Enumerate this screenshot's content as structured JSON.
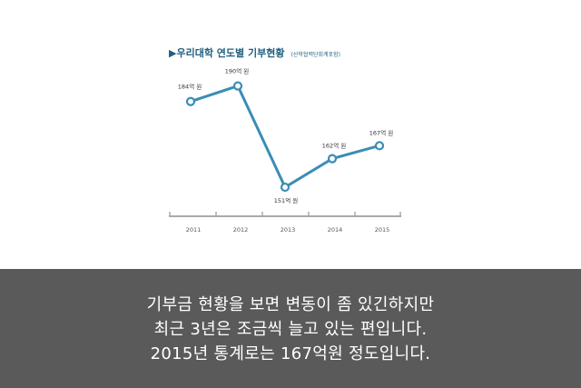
{
  "chart_data": {
    "type": "line",
    "title": "▶우리대학 연도별 기부현황",
    "subtitle": "(산학협력단회계포함)",
    "categories": [
      "2011",
      "2012",
      "2013",
      "2014",
      "2015"
    ],
    "series": [
      {
        "values": [
          184,
          190,
          151,
          162,
          167
        ]
      }
    ],
    "data_labels": [
      "184억 원",
      "190억 원",
      "151억 원",
      "162억 원",
      "167억 원"
    ],
    "ylim": [
      145,
      200
    ],
    "grid": false,
    "line_color": "#3a8db5",
    "axis_color": "#aaaaaa"
  },
  "caption": {
    "lines": [
      "기부금 현황을 보면 변동이 좀 있긴하지만",
      "최근 3년은 조금씩 늘고 있는 편입니다.",
      "2015년 통계로는 167억원 정도입니다."
    ],
    "background": "#5a5a5a"
  }
}
